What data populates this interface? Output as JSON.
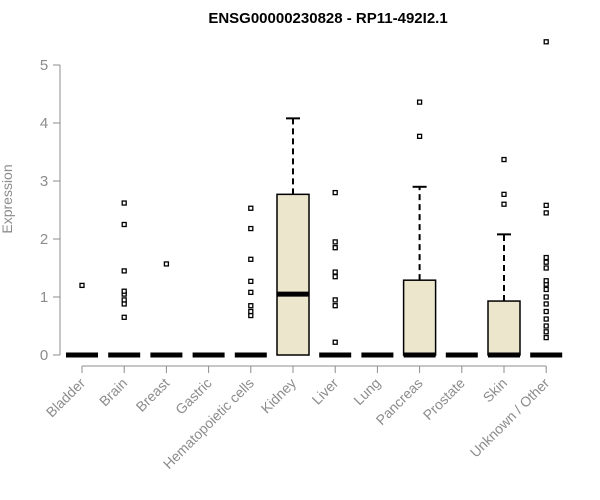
{
  "chart_data": {
    "type": "box",
    "title": "ENSG00000230828 - RP11-492I2.1",
    "xlabel": "",
    "ylabel": "Expression",
    "ylim": [
      0,
      5.4
    ],
    "yticks": [
      0,
      1,
      2,
      3,
      4,
      5
    ],
    "grid": false,
    "box_fill": "#ece6cc",
    "categories": [
      "Bladder",
      "Brain",
      "Breast",
      "Gastric",
      "Hematopoietic cells",
      "Kidney",
      "Liver",
      "Lung",
      "Pancreas",
      "Prostate",
      "Skin",
      "Unknown / Other"
    ],
    "boxes": [
      {
        "category": "Bladder",
        "q1": 0,
        "median": 0,
        "q3": 0,
        "whisker_low": 0,
        "whisker_high": 0,
        "outliers": [
          1.2
        ]
      },
      {
        "category": "Brain",
        "q1": 0,
        "median": 0,
        "q3": 0,
        "whisker_low": 0,
        "whisker_high": 0,
        "outliers": [
          0.65,
          0.88,
          0.95,
          1.05,
          1.1,
          1.45,
          2.25,
          2.62
        ]
      },
      {
        "category": "Breast",
        "q1": 0,
        "median": 0,
        "q3": 0,
        "whisker_low": 0,
        "whisker_high": 0,
        "outliers": [
          1.57
        ]
      },
      {
        "category": "Gastric",
        "q1": 0,
        "median": 0,
        "q3": 0,
        "whisker_low": 0,
        "whisker_high": 0,
        "outliers": []
      },
      {
        "category": "Hematopoietic cells",
        "q1": 0,
        "median": 0,
        "q3": 0,
        "whisker_low": 0,
        "whisker_high": 0,
        "outliers": [
          0.68,
          0.75,
          0.85,
          1.08,
          1.27,
          1.65,
          2.18,
          2.53
        ]
      },
      {
        "category": "Kidney",
        "q1": 0,
        "median": 1.05,
        "q3": 2.77,
        "whisker_low": 0,
        "whisker_high": 4.08,
        "outliers": []
      },
      {
        "category": "Liver",
        "q1": 0,
        "median": 0,
        "q3": 0,
        "whisker_low": 0,
        "whisker_high": 0,
        "outliers": [
          0.22,
          0.85,
          0.95,
          1.35,
          1.43,
          1.85,
          1.95,
          2.8
        ]
      },
      {
        "category": "Lung",
        "q1": 0,
        "median": 0,
        "q3": 0,
        "whisker_low": 0,
        "whisker_high": 0,
        "outliers": []
      },
      {
        "category": "Pancreas",
        "q1": 0,
        "median": 0,
        "q3": 1.29,
        "whisker_low": 0,
        "whisker_high": 2.9,
        "outliers": [
          3.77,
          4.36
        ]
      },
      {
        "category": "Prostate",
        "q1": 0,
        "median": 0,
        "q3": 0,
        "whisker_low": 0,
        "whisker_high": 0,
        "outliers": []
      },
      {
        "category": "Skin",
        "q1": 0,
        "median": 0,
        "q3": 0.93,
        "whisker_low": 0,
        "whisker_high": 2.08,
        "outliers": [
          2.6,
          2.77,
          3.37
        ]
      },
      {
        "category": "Unknown / Other",
        "q1": 0,
        "median": 0,
        "q3": 0,
        "whisker_low": 0,
        "whisker_high": 0,
        "outliers": [
          0.3,
          0.4,
          0.5,
          0.62,
          0.75,
          0.88,
          1.0,
          1.13,
          1.22,
          1.28,
          1.5,
          1.6,
          1.68,
          2.45,
          2.58,
          5.4
        ]
      }
    ]
  }
}
